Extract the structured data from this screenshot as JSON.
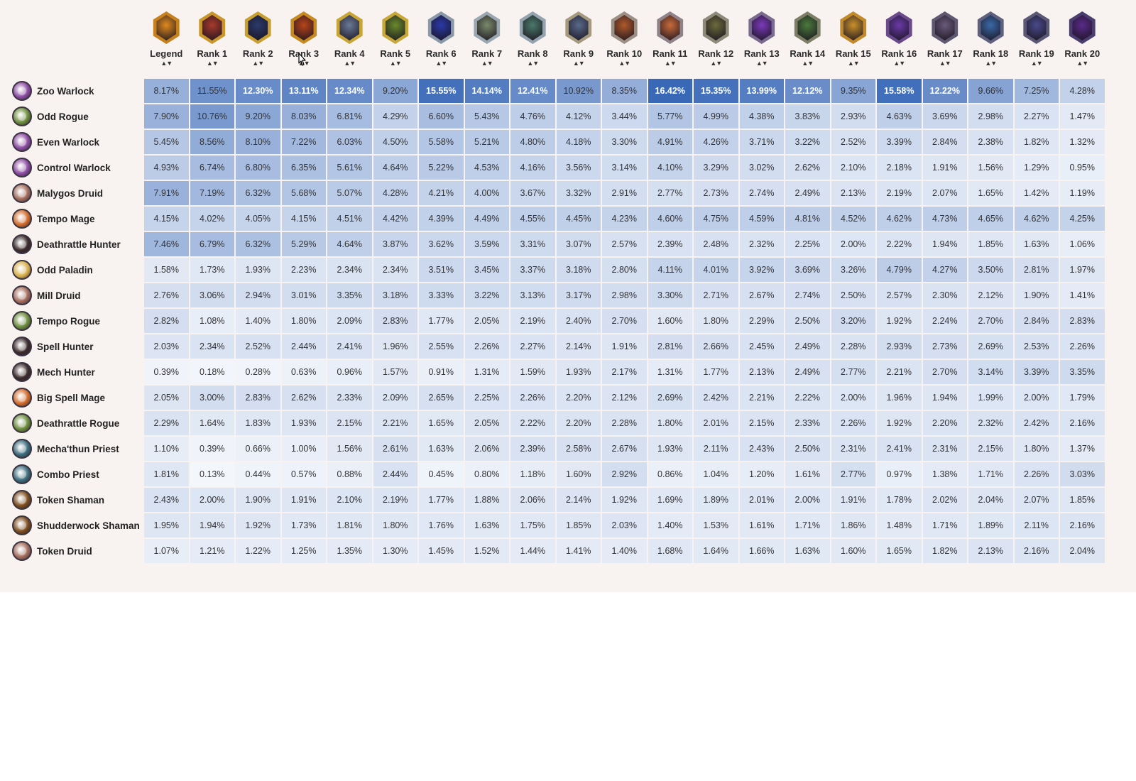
{
  "table": {
    "columns": [
      "Legend",
      "Rank 1",
      "Rank 2",
      "Rank 3",
      "Rank 4",
      "Rank 5",
      "Rank 6",
      "Rank 7",
      "Rank 8",
      "Rank 9",
      "Rank 10",
      "Rank 11",
      "Rank 12",
      "Rank 13",
      "Rank 14",
      "Rank 15",
      "Rank 16",
      "Rank 17",
      "Rank 18",
      "Rank 19",
      "Rank 20"
    ],
    "rank_badge_colors": [
      "#c6801d",
      "#c8962a",
      "#c9a030",
      "#c68a20",
      "#c8a535",
      "#c9a83a",
      "#8a98a8",
      "#9aa6b0",
      "#95a3ae",
      "#a69a7e",
      "#9c8f86",
      "#8f8288",
      "#8d8a7a",
      "#7a6a8e",
      "#7e7d66",
      "#c28a2a",
      "#6a4a8a",
      "#5e5870",
      "#5f5f7e",
      "#5b5876",
      "#4a3e6e"
    ],
    "rank_badge_inner_colors": [
      "#e08a1e",
      "#a83a2a",
      "#2a3a6a",
      "#b84418",
      "#6a7a98",
      "#6a8a2a",
      "#2a3aa8",
      "#7a8a6a",
      "#4a7a6a",
      "#5a6a8a",
      "#b05a2a",
      "#c86a3a",
      "#6a6a3a",
      "#7a3ab8",
      "#4a7a3a",
      "#c8902a",
      "#6a3aa8",
      "#6a5a7a",
      "#3a6aa8",
      "#4a4a8a",
      "#5a2a8a"
    ],
    "sort_icon": "sort-arrows-icon",
    "rows": [
      {
        "archetype": "Zoo Warlock",
        "class_icon": "warlock-icon",
        "icon_color": "#8a4aa0",
        "values": [
          "8.17%",
          "11.55%",
          "12.30%",
          "13.11%",
          "12.34%",
          "9.20%",
          "15.55%",
          "14.14%",
          "12.41%",
          "10.92%",
          "8.35%",
          "16.42%",
          "15.35%",
          "13.99%",
          "12.12%",
          "9.35%",
          "15.58%",
          "12.22%",
          "9.66%",
          "7.25%",
          "4.28%"
        ]
      },
      {
        "archetype": "Odd Rogue",
        "class_icon": "rogue-icon",
        "icon_color": "#6a8a3a",
        "values": [
          "7.90%",
          "10.76%",
          "9.20%",
          "8.03%",
          "6.81%",
          "4.29%",
          "6.60%",
          "5.43%",
          "4.76%",
          "4.12%",
          "3.44%",
          "5.77%",
          "4.99%",
          "4.38%",
          "3.83%",
          "2.93%",
          "4.63%",
          "3.69%",
          "2.98%",
          "2.27%",
          "1.47%"
        ]
      },
      {
        "archetype": "Even Warlock",
        "class_icon": "warlock-icon",
        "icon_color": "#8a4aa0",
        "values": [
          "5.45%",
          "8.56%",
          "8.10%",
          "7.22%",
          "6.03%",
          "4.50%",
          "5.58%",
          "5.21%",
          "4.80%",
          "4.18%",
          "3.30%",
          "4.91%",
          "4.26%",
          "3.71%",
          "3.22%",
          "2.52%",
          "3.39%",
          "2.84%",
          "2.38%",
          "1.82%",
          "1.32%"
        ]
      },
      {
        "archetype": "Control Warlock",
        "class_icon": "warlock-icon",
        "icon_color": "#8a4aa0",
        "values": [
          "4.93%",
          "6.74%",
          "6.80%",
          "6.35%",
          "5.61%",
          "4.64%",
          "5.22%",
          "4.53%",
          "4.16%",
          "3.56%",
          "3.14%",
          "4.10%",
          "3.29%",
          "3.02%",
          "2.62%",
          "2.10%",
          "2.18%",
          "1.91%",
          "1.56%",
          "1.29%",
          "0.95%"
        ]
      },
      {
        "archetype": "Malygos Druid",
        "class_icon": "druid-icon",
        "icon_color": "#a06a5a",
        "values": [
          "7.91%",
          "7.19%",
          "6.32%",
          "5.68%",
          "5.07%",
          "4.28%",
          "4.21%",
          "4.00%",
          "3.67%",
          "3.32%",
          "2.91%",
          "2.77%",
          "2.73%",
          "2.74%",
          "2.49%",
          "2.13%",
          "2.19%",
          "2.07%",
          "1.65%",
          "1.42%",
          "1.19%"
        ]
      },
      {
        "archetype": "Tempo Mage",
        "class_icon": "mage-icon",
        "icon_color": "#d06a2a",
        "values": [
          "4.15%",
          "4.02%",
          "4.05%",
          "4.15%",
          "4.51%",
          "4.42%",
          "4.39%",
          "4.49%",
          "4.55%",
          "4.45%",
          "4.23%",
          "4.60%",
          "4.75%",
          "4.59%",
          "4.81%",
          "4.52%",
          "4.62%",
          "4.73%",
          "4.65%",
          "4.62%",
          "4.25%"
        ]
      },
      {
        "archetype": "Deathrattle Hunter",
        "class_icon": "hunter-icon",
        "icon_color": "#3a2a2a",
        "values": [
          "7.46%",
          "6.79%",
          "6.32%",
          "5.29%",
          "4.64%",
          "3.87%",
          "3.62%",
          "3.59%",
          "3.31%",
          "3.07%",
          "2.57%",
          "2.39%",
          "2.48%",
          "2.32%",
          "2.25%",
          "2.00%",
          "2.22%",
          "1.94%",
          "1.85%",
          "1.63%",
          "1.06%"
        ]
      },
      {
        "archetype": "Odd Paladin",
        "class_icon": "paladin-icon",
        "icon_color": "#d8b04a",
        "values": [
          "1.58%",
          "1.73%",
          "1.93%",
          "2.23%",
          "2.34%",
          "2.34%",
          "3.51%",
          "3.45%",
          "3.37%",
          "3.18%",
          "2.80%",
          "4.11%",
          "4.01%",
          "3.92%",
          "3.69%",
          "3.26%",
          "4.79%",
          "4.27%",
          "3.50%",
          "2.81%",
          "1.97%"
        ]
      },
      {
        "archetype": "Mill Druid",
        "class_icon": "druid-icon",
        "icon_color": "#a06a5a",
        "values": [
          "2.76%",
          "3.06%",
          "2.94%",
          "3.01%",
          "3.35%",
          "3.18%",
          "3.33%",
          "3.22%",
          "3.13%",
          "3.17%",
          "2.98%",
          "3.30%",
          "2.71%",
          "2.67%",
          "2.74%",
          "2.50%",
          "2.57%",
          "2.30%",
          "2.12%",
          "1.90%",
          "1.41%"
        ]
      },
      {
        "archetype": "Tempo Rogue",
        "class_icon": "rogue-icon",
        "icon_color": "#6a8a3a",
        "values": [
          "2.82%",
          "1.08%",
          "1.40%",
          "1.80%",
          "2.09%",
          "2.83%",
          "1.77%",
          "2.05%",
          "2.19%",
          "2.40%",
          "2.70%",
          "1.60%",
          "1.80%",
          "2.29%",
          "2.50%",
          "3.20%",
          "1.92%",
          "2.24%",
          "2.70%",
          "2.84%",
          "2.83%"
        ]
      },
      {
        "archetype": "Spell Hunter",
        "class_icon": "hunter-icon",
        "icon_color": "#3a2a2a",
        "values": [
          "2.03%",
          "2.34%",
          "2.52%",
          "2.44%",
          "2.41%",
          "1.96%",
          "2.55%",
          "2.26%",
          "2.27%",
          "2.14%",
          "1.91%",
          "2.81%",
          "2.66%",
          "2.45%",
          "2.49%",
          "2.28%",
          "2.93%",
          "2.73%",
          "2.69%",
          "2.53%",
          "2.26%"
        ]
      },
      {
        "archetype": "Mech Hunter",
        "class_icon": "hunter-icon",
        "icon_color": "#3a2a2a",
        "values": [
          "0.39%",
          "0.18%",
          "0.28%",
          "0.63%",
          "0.96%",
          "1.57%",
          "0.91%",
          "1.31%",
          "1.59%",
          "1.93%",
          "2.17%",
          "1.31%",
          "1.77%",
          "2.13%",
          "2.49%",
          "2.77%",
          "2.21%",
          "2.70%",
          "3.14%",
          "3.39%",
          "3.35%"
        ]
      },
      {
        "archetype": "Big Spell Mage",
        "class_icon": "mage-icon",
        "icon_color": "#d06a2a",
        "values": [
          "2.05%",
          "3.00%",
          "2.83%",
          "2.62%",
          "2.33%",
          "2.09%",
          "2.65%",
          "2.25%",
          "2.26%",
          "2.20%",
          "2.12%",
          "2.69%",
          "2.42%",
          "2.21%",
          "2.22%",
          "2.00%",
          "1.96%",
          "1.94%",
          "1.99%",
          "2.00%",
          "1.79%"
        ]
      },
      {
        "archetype": "Deathrattle Rogue",
        "class_icon": "rogue-icon",
        "icon_color": "#6a8a3a",
        "values": [
          "2.29%",
          "1.64%",
          "1.83%",
          "1.93%",
          "2.15%",
          "2.21%",
          "1.65%",
          "2.05%",
          "2.22%",
          "2.20%",
          "2.28%",
          "1.80%",
          "2.01%",
          "2.15%",
          "2.33%",
          "2.26%",
          "1.92%",
          "2.20%",
          "2.32%",
          "2.42%",
          "2.16%"
        ]
      },
      {
        "archetype": "Mecha'thun Priest",
        "class_icon": "priest-icon",
        "icon_color": "#3a6a7a",
        "values": [
          "1.10%",
          "0.39%",
          "0.66%",
          "1.00%",
          "1.56%",
          "2.61%",
          "1.63%",
          "2.06%",
          "2.39%",
          "2.58%",
          "2.67%",
          "1.93%",
          "2.11%",
          "2.43%",
          "2.50%",
          "2.31%",
          "2.41%",
          "2.31%",
          "2.15%",
          "1.80%",
          "1.37%"
        ]
      },
      {
        "archetype": "Combo Priest",
        "class_icon": "priest-icon",
        "icon_color": "#3a6a7a",
        "values": [
          "1.81%",
          "0.13%",
          "0.44%",
          "0.57%",
          "0.88%",
          "2.44%",
          "0.45%",
          "0.80%",
          "1.18%",
          "1.60%",
          "2.92%",
          "0.86%",
          "1.04%",
          "1.20%",
          "1.61%",
          "2.77%",
          "0.97%",
          "1.38%",
          "1.71%",
          "2.26%",
          "3.03%"
        ]
      },
      {
        "archetype": "Token Shaman",
        "class_icon": "shaman-icon",
        "icon_color": "#7a4a1a",
        "values": [
          "2.43%",
          "2.00%",
          "1.90%",
          "1.91%",
          "2.10%",
          "2.19%",
          "1.77%",
          "1.88%",
          "2.06%",
          "2.14%",
          "1.92%",
          "1.69%",
          "1.89%",
          "2.01%",
          "2.00%",
          "1.91%",
          "1.78%",
          "2.02%",
          "2.04%",
          "2.07%",
          "1.85%"
        ]
      },
      {
        "archetype": "Shudderwock Shaman",
        "class_icon": "shaman-icon",
        "icon_color": "#7a4a1a",
        "values": [
          "1.95%",
          "1.94%",
          "1.92%",
          "1.73%",
          "1.81%",
          "1.80%",
          "1.76%",
          "1.63%",
          "1.75%",
          "1.85%",
          "2.03%",
          "1.40%",
          "1.53%",
          "1.61%",
          "1.71%",
          "1.86%",
          "1.48%",
          "1.71%",
          "1.89%",
          "2.11%",
          "2.16%"
        ]
      },
      {
        "archetype": "Token Druid",
        "class_icon": "druid-icon",
        "icon_color": "#a06a5a",
        "values": [
          "1.07%",
          "1.21%",
          "1.22%",
          "1.25%",
          "1.35%",
          "1.30%",
          "1.45%",
          "1.52%",
          "1.44%",
          "1.41%",
          "1.40%",
          "1.68%",
          "1.64%",
          "1.66%",
          "1.63%",
          "1.60%",
          "1.65%",
          "1.82%",
          "2.13%",
          "2.16%",
          "2.04%"
        ]
      }
    ]
  }
}
